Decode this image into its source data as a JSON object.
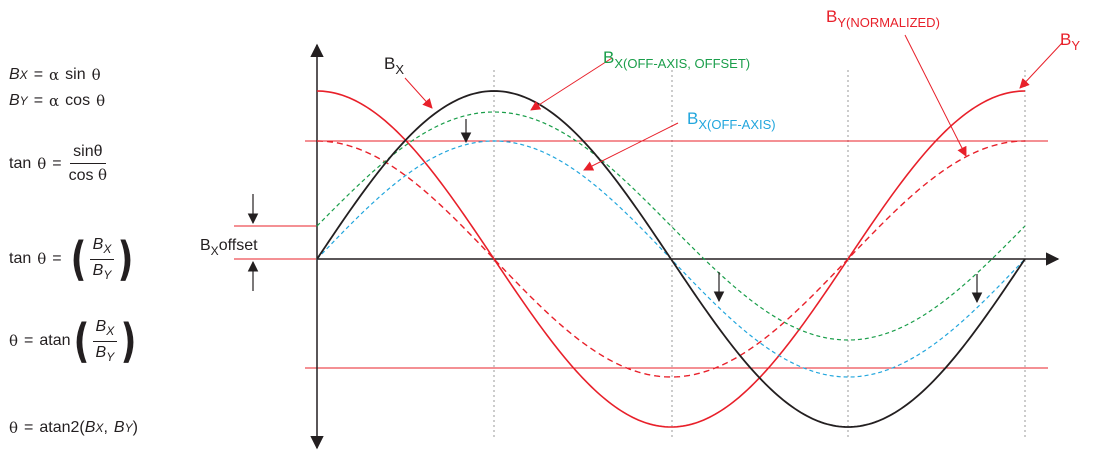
{
  "colors": {
    "black": "#231f20",
    "red": "#e8202a",
    "green": "#1a9e4a",
    "blue": "#22a6dd",
    "grid": "#9a9a9a"
  },
  "labels": {
    "bx": {
      "main": "B",
      "sub": "X"
    },
    "bx_off_axis_offset": {
      "main": "B",
      "sub": "X(OFF-AXIS, OFFSET)"
    },
    "bx_off_axis": {
      "main": "B",
      "sub": "X(OFF-AXIS)"
    },
    "by_normalized": {
      "main": "B",
      "sub": "Y(NORMALIZED)"
    },
    "by": {
      "main": "B",
      "sub": "Y"
    },
    "bx_offset": {
      "main": "B",
      "sub": "X",
      "rest": "offset"
    }
  },
  "equations": {
    "eq1": {
      "lhs": "B",
      "lhs_sub": "X",
      "eq": "=",
      "alpha": "α",
      "fn": "sin",
      "theta": "θ"
    },
    "eq2": {
      "lhs": "B",
      "lhs_sub": "Y",
      "eq": "=",
      "alpha": "α",
      "fn": "cos",
      "theta": "θ"
    },
    "eq3": {
      "fn": "tan",
      "theta": "θ",
      "eq": "=",
      "num": "sinθ",
      "den_fn": "cos",
      "den_theta": "θ"
    },
    "eq4": {
      "fn": "tan",
      "theta": "θ",
      "eq": "=",
      "num": "B",
      "num_sub": "X",
      "den": "B",
      "den_sub": "Y"
    },
    "eq5": {
      "theta": "θ",
      "eq": "=",
      "fn": "atan",
      "num": "B",
      "num_sub": "X",
      "den": "B",
      "den_sub": "Y"
    },
    "eq6": {
      "theta": "θ",
      "eq": "=",
      "fn": "atan2(",
      "a": "B",
      "a_sub": "X",
      "comma": ",",
      "b": "B",
      "b_sub": "Y",
      "close": ")"
    }
  }
}
